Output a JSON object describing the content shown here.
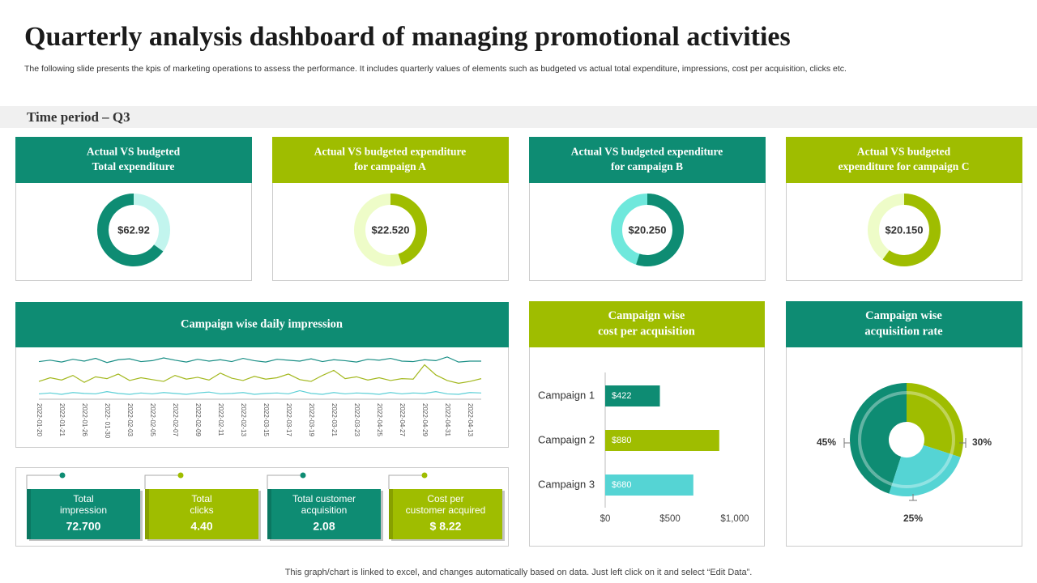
{
  "header": {
    "title": "Quarterly analysis dashboard of managing promotional  activities",
    "subtitle": "The following slide presents the kpis of marketing operations to assess the performance. It includes quarterly values of elements such as budgeted vs actual total expenditure, impressions, cost per acquisition, clicks etc."
  },
  "time_period": "Time period – Q3",
  "cards": [
    {
      "title": [
        "Actual VS budgeted",
        "Total expenditure"
      ],
      "value": "$62.92",
      "share": 65,
      "color": "#0e8c73",
      "light": "#c2f5ee"
    },
    {
      "title": [
        "Actual VS budgeted expenditure",
        "for campaign A"
      ],
      "value": "$22.520",
      "share": 45,
      "color": "#9fbd00",
      "light": "#eefcc8"
    },
    {
      "title": [
        "Actual VS budgeted expenditure",
        "for campaign B"
      ],
      "value": "$20.250",
      "share": 55,
      "color": "#0e8c73",
      "light": "#6fe8dc"
    },
    {
      "title": [
        "Actual VS budgeted",
        "expenditure for campaign C"
      ],
      "value": "$20.150",
      "share": 60,
      "color": "#9fbd00",
      "light": "#eefcc8"
    }
  ],
  "chart_data": [
    {
      "type": "line",
      "title": [
        "Campaign  wise daily impression"
      ],
      "header_color": "#0e8c73",
      "categories": [
        "2022-01-20",
        null,
        "2022-01-21",
        null,
        "2022-01-26",
        null,
        "2022- 01-30",
        null,
        "2022-02-03",
        null,
        "2022-02-05",
        null,
        "2022-02-07",
        null,
        "2022-02-09",
        null,
        "2022-02-11",
        null,
        "2022-02-13",
        null,
        "2022-03-15",
        null,
        "2022-03-17",
        null,
        "2022-03-19",
        null,
        "2022-03-21",
        null,
        "2022-03-23",
        null,
        "2022-04-25",
        null,
        "2022-04-27",
        null,
        "2022-04-29",
        null,
        "2022-04-31",
        null,
        "2022-04-13",
        null
      ],
      "ylim": [
        0,
        100
      ],
      "series": [
        {
          "color": "#1a8f86",
          "values": [
            85,
            88,
            84,
            90,
            86,
            92,
            83,
            89,
            91,
            85,
            87,
            93,
            88,
            84,
            90,
            86,
            89,
            85,
            92,
            87,
            84,
            90,
            88,
            86,
            91,
            85,
            89,
            87,
            84,
            90,
            88,
            92,
            86,
            85,
            89,
            87,
            95,
            84,
            86,
            86
          ]
        },
        {
          "color": "#a3b81e",
          "values": [
            42,
            50,
            45,
            55,
            40,
            52,
            48,
            58,
            44,
            50,
            46,
            42,
            55,
            47,
            51,
            45,
            60,
            49,
            44,
            53,
            47,
            50,
            58,
            46,
            42,
            55,
            66,
            48,
            52,
            45,
            50,
            44,
            48,
            47,
            78,
            56,
            44,
            38,
            42,
            48
          ]
        },
        {
          "color": "#5ccfd6",
          "values": [
            15,
            17,
            14,
            18,
            16,
            15,
            20,
            16,
            14,
            17,
            15,
            18,
            16,
            14,
            17,
            19,
            15,
            16,
            18,
            14,
            16,
            17,
            15,
            22,
            16,
            14,
            18,
            15,
            17,
            16,
            14,
            18,
            15,
            17,
            16,
            20,
            15,
            14,
            18,
            17
          ]
        }
      ]
    },
    {
      "type": "hbar",
      "title": [
        "Campaign  wise",
        "cost per acquisition"
      ],
      "header_color": "#9fbd00",
      "categories": [
        "Campaign 1",
        "Campaign 2",
        "Campaign 3"
      ],
      "values": [
        422,
        880,
        680
      ],
      "value_labels": [
        "$422",
        "$880",
        "$680"
      ],
      "colors": [
        "#0e8c73",
        "#9fbd00",
        "#55d4d4"
      ],
      "xlim": [
        0,
        1000
      ],
      "xticks": [
        {
          "value": 0,
          "label": "$0"
        },
        {
          "value": 500,
          "label": "$500"
        },
        {
          "value": 1000,
          "label": "$1,000"
        }
      ]
    },
    {
      "type": "pie",
      "title": [
        "Campaign  wise",
        "acquisition  rate"
      ],
      "header_color": "#0e8c73",
      "values": [
        45,
        30,
        25
      ],
      "value_labels": [
        "45%",
        "30%",
        "25%"
      ],
      "colors": [
        "#0e8c73",
        "#9fbd00",
        "#55d4d4"
      ]
    }
  ],
  "kpis": [
    {
      "title": [
        "Total",
        "impression"
      ],
      "value": "72.700",
      "color": "#0e8c73"
    },
    {
      "title": [
        "Total",
        "clicks"
      ],
      "value": "4.40",
      "color": "#9fbd00"
    },
    {
      "title": [
        "Total customer",
        "acquisition"
      ],
      "value": "2.08",
      "color": "#0e8c73"
    },
    {
      "title": [
        "Cost per",
        "customer acquired"
      ],
      "value": "$ 8.22",
      "color": "#9fbd00"
    }
  ],
  "footer": "This graph/chart is linked to excel,  and changes automatically based on data. Just left click on it and select “Edit Data”."
}
